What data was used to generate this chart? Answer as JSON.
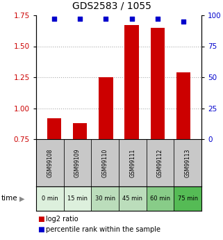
{
  "title": "GDS2583 / 1055",
  "samples": [
    "GSM99108",
    "GSM99109",
    "GSM99110",
    "GSM99111",
    "GSM99112",
    "GSM99113"
  ],
  "time_labels": [
    "0 min",
    "15 min",
    "30 min",
    "45 min",
    "60 min",
    "75 min"
  ],
  "log2_ratio": [
    0.92,
    0.88,
    1.25,
    1.67,
    1.65,
    1.29
  ],
  "percentile_rank": [
    97,
    97,
    97,
    97,
    97,
    95
  ],
  "ylim_left": [
    0.75,
    1.75
  ],
  "ylim_right": [
    0,
    100
  ],
  "yticks_left": [
    0.75,
    1.0,
    1.25,
    1.5,
    1.75
  ],
  "yticks_right": [
    0,
    25,
    50,
    75,
    100
  ],
  "bar_color": "#cc0000",
  "dot_color": "#0000cc",
  "bar_width": 0.55,
  "background_color": "#ffffff",
  "gsm_bg_color": "#c8c8c8",
  "time_bg_colors": [
    "#ddf0dd",
    "#ddf0dd",
    "#bbddbb",
    "#bbddbb",
    "#88cc88",
    "#55bb55"
  ],
  "legend_log2_color": "#cc0000",
  "legend_pct_color": "#0000cc",
  "title_fontsize": 10,
  "tick_fontsize": 7.5,
  "dotted_grid_color": "#aaaaaa",
  "dotted_grid_values": [
    1.0,
    1.25,
    1.5
  ]
}
